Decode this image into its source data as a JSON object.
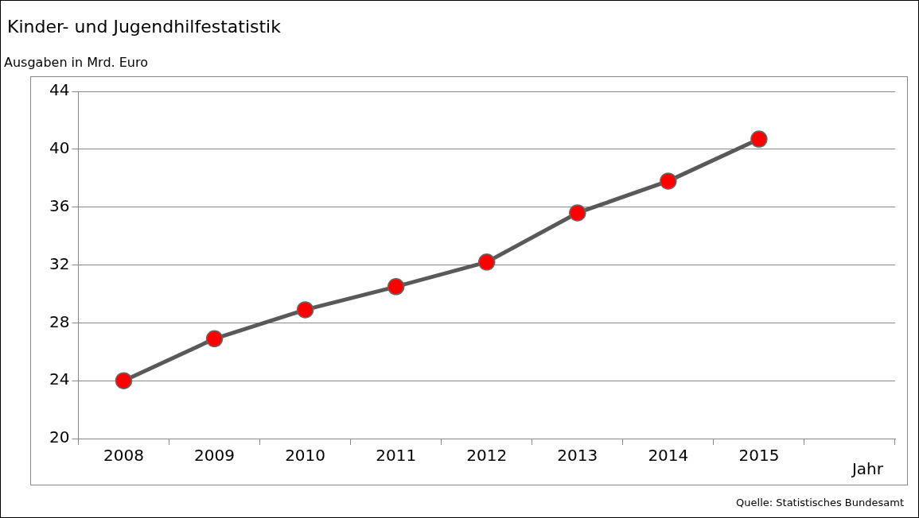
{
  "chart_data": {
    "type": "line",
    "title": "Kinder- und Jugendhilfestatistik",
    "subtitle": "Ausgaben in Mrd. Euro",
    "xlabel": "Jahr",
    "categories": [
      "2008",
      "2009",
      "2010",
      "2011",
      "2012",
      "2013",
      "2014",
      "2015",
      null
    ],
    "series": [
      {
        "color": "#595959",
        "values": [
          24.0,
          26.9,
          28.9,
          30.5,
          32.2,
          35.6,
          37.8,
          40.7,
          null
        ]
      }
    ],
    "marker": "circle",
    "line_style": "solid",
    "ylim": [
      20,
      44
    ],
    "yticks": [
      20,
      24,
      28,
      32,
      36,
      40,
      44
    ],
    "grid": "y",
    "legend": false,
    "annotations": [
      "Quelle: Statistisches Bundesamt"
    ]
  }
}
